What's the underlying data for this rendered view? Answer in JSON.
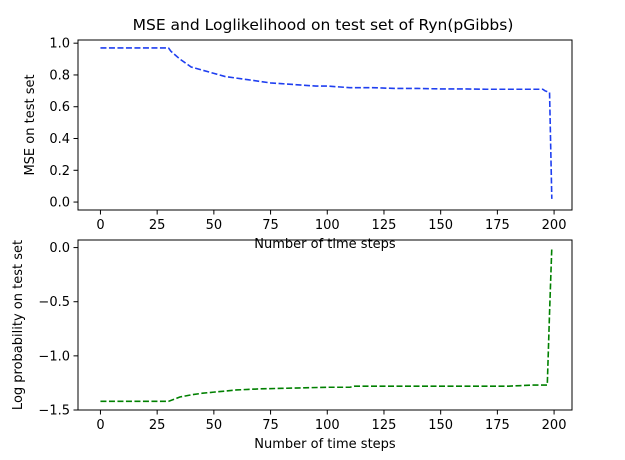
{
  "figure": {
    "title": "MSE and Loglikelihood on test set of Ryn(pGibbs)"
  },
  "chart_data": [
    {
      "type": "line",
      "xlabel": "Number of time steps",
      "ylabel": "MSE on test set",
      "xlim": [
        -9.9,
        207.9
      ],
      "ylim": [
        -0.05,
        1.02
      ],
      "xticks": [
        0,
        25,
        50,
        75,
        100,
        125,
        150,
        175,
        200
      ],
      "yticks": [
        0.0,
        0.2,
        0.4,
        0.6,
        0.8,
        1.0
      ],
      "ytick_labels": [
        "0.0",
        "0.2",
        "0.4",
        "0.6",
        "0.8",
        "1.0"
      ],
      "grid": false,
      "series": [
        {
          "color": "#1f3ff0",
          "linestyle": "dashed",
          "x": [
            0,
            30,
            31,
            35,
            40,
            45,
            50,
            55,
            60,
            65,
            70,
            75,
            80,
            85,
            90,
            95,
            100,
            105,
            110,
            120,
            130,
            140,
            150,
            160,
            170,
            180,
            190,
            195,
            196,
            198,
            199
          ],
          "y": [
            0.97,
            0.97,
            0.95,
            0.9,
            0.85,
            0.83,
            0.81,
            0.79,
            0.78,
            0.77,
            0.76,
            0.75,
            0.745,
            0.74,
            0.735,
            0.73,
            0.73,
            0.725,
            0.72,
            0.72,
            0.715,
            0.715,
            0.712,
            0.712,
            0.71,
            0.71,
            0.71,
            0.71,
            0.7,
            0.69,
            0.02
          ]
        }
      ]
    },
    {
      "type": "line",
      "xlabel": "Number of time steps",
      "ylabel": "Log probability on test set",
      "xlim": [
        -9.9,
        207.9
      ],
      "ylim": [
        -1.5,
        0.07
      ],
      "xticks": [
        0,
        25,
        50,
        75,
        100,
        125,
        150,
        175,
        200
      ],
      "yticks": [
        -1.5,
        -1.0,
        -0.5,
        0.0
      ],
      "ytick_labels": [
        "−1.5",
        "−1.0",
        "−0.5",
        "0.0"
      ],
      "grid": false,
      "series": [
        {
          "color": "#008000",
          "linestyle": "dashed",
          "x": [
            0,
            30,
            35,
            40,
            45,
            50,
            55,
            60,
            65,
            70,
            80,
            90,
            100,
            110,
            112,
            120,
            140,
            160,
            180,
            185,
            190,
            197,
            198,
            199
          ],
          "y": [
            -1.42,
            -1.42,
            -1.38,
            -1.36,
            -1.345,
            -1.335,
            -1.325,
            -1.315,
            -1.31,
            -1.305,
            -1.3,
            -1.295,
            -1.29,
            -1.29,
            -1.28,
            -1.28,
            -1.28,
            -1.28,
            -1.28,
            -1.275,
            -1.27,
            -1.27,
            -0.6,
            0.0
          ]
        }
      ]
    }
  ]
}
